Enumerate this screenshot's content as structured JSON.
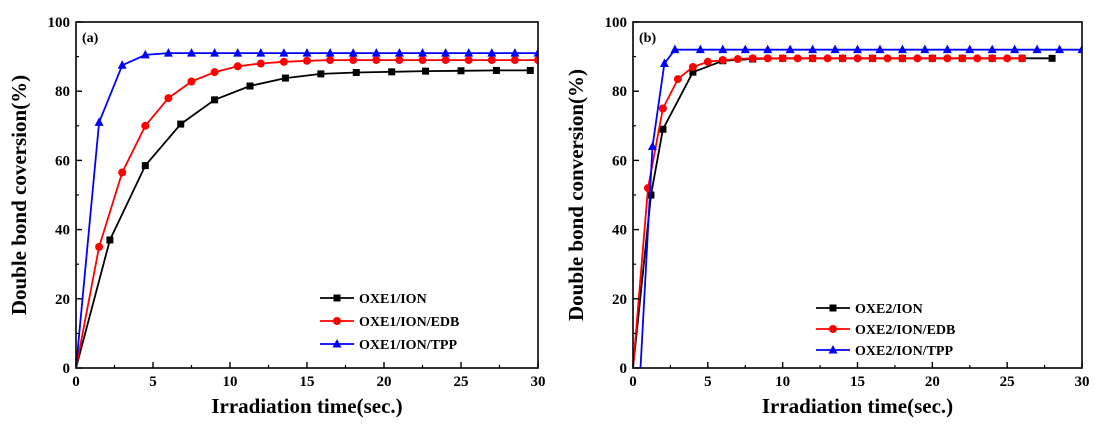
{
  "chart_data": [
    {
      "type": "line",
      "panel_label": "(a)",
      "xlabel": "Irradiation time(sec.)",
      "ylabel": "Double bond coversion(%)",
      "xlim": [
        0,
        30
      ],
      "ylim": [
        0,
        100
      ],
      "xticks": [
        0,
        5,
        10,
        15,
        20,
        25,
        30
      ],
      "yticks": [
        0,
        20,
        40,
        60,
        80,
        100
      ],
      "grid": false,
      "legend_position": "bottom-right",
      "series": [
        {
          "name": "OXE1/ION",
          "color": "#000000",
          "marker": "square",
          "points": [
            [
              0,
              0
            ],
            [
              2.2,
              37
            ],
            [
              4.5,
              58.5
            ],
            [
              6.8,
              70.5
            ],
            [
              9,
              77.5
            ],
            [
              11.3,
              81.5
            ],
            [
              13.6,
              83.8
            ],
            [
              15.9,
              85
            ],
            [
              18.2,
              85.4
            ],
            [
              20.5,
              85.6
            ],
            [
              22.7,
              85.8
            ],
            [
              25,
              85.9
            ],
            [
              27.3,
              86
            ],
            [
              29.5,
              86
            ]
          ]
        },
        {
          "name": "OXE1/ION/EDB",
          "color": "#ff0000",
          "marker": "circle",
          "points": [
            [
              0,
              0
            ],
            [
              1.5,
              35
            ],
            [
              3,
              56.5
            ],
            [
              4.5,
              70
            ],
            [
              6,
              78
            ],
            [
              7.5,
              82.8
            ],
            [
              9,
              85.5
            ],
            [
              10.5,
              87.2
            ],
            [
              12,
              88
            ],
            [
              13.5,
              88.5
            ],
            [
              15,
              88.8
            ],
            [
              16.5,
              89
            ],
            [
              18,
              89
            ],
            [
              19.5,
              89
            ],
            [
              21,
              89
            ],
            [
              22.5,
              89
            ],
            [
              24,
              89
            ],
            [
              25.5,
              89
            ],
            [
              27,
              89
            ],
            [
              28.5,
              89
            ],
            [
              30,
              89
            ]
          ]
        },
        {
          "name": "OXE1/ION/TPP",
          "color": "#0000ff",
          "marker": "triangle",
          "points": [
            [
              0,
              0
            ],
            [
              1.5,
              71
            ],
            [
              3,
              87.5
            ],
            [
              4.5,
              90.5
            ],
            [
              6,
              91
            ],
            [
              7.5,
              91
            ],
            [
              9,
              91
            ],
            [
              10.5,
              91
            ],
            [
              12,
              91
            ],
            [
              13.5,
              91
            ],
            [
              15,
              91
            ],
            [
              16.5,
              91
            ],
            [
              18,
              91
            ],
            [
              19.5,
              91
            ],
            [
              21,
              91
            ],
            [
              22.5,
              91
            ],
            [
              24,
              91
            ],
            [
              25.5,
              91
            ],
            [
              27,
              91
            ],
            [
              28.5,
              91
            ],
            [
              30,
              91
            ]
          ]
        }
      ]
    },
    {
      "type": "line",
      "panel_label": "(b)",
      "xlabel": "Irradiation time(sec.)",
      "ylabel": "Double bond conversion(%)",
      "xlim": [
        0,
        30
      ],
      "ylim": [
        0,
        100
      ],
      "xticks": [
        0,
        5,
        10,
        15,
        20,
        25,
        30
      ],
      "yticks": [
        0,
        20,
        40,
        60,
        80,
        100
      ],
      "grid": false,
      "legend_position": "bottom-right",
      "series": [
        {
          "name": "OXE2/ION",
          "color": "#000000",
          "marker": "square",
          "points": [
            [
              0,
              0
            ],
            [
              1.2,
              50
            ],
            [
              2,
              69
            ],
            [
              4,
              85.5
            ],
            [
              6,
              88.8
            ],
            [
              8,
              89.3
            ],
            [
              10,
              89.5
            ],
            [
              12,
              89.5
            ],
            [
              14,
              89.5
            ],
            [
              16,
              89.5
            ],
            [
              18,
              89.5
            ],
            [
              20,
              89.5
            ],
            [
              22,
              89.5
            ],
            [
              24,
              89.5
            ],
            [
              26,
              89.5
            ],
            [
              28,
              89.5
            ]
          ]
        },
        {
          "name": "OXE2/ION/EDB",
          "color": "#ff0000",
          "marker": "circle",
          "points": [
            [
              0,
              0
            ],
            [
              1,
              52
            ],
            [
              2,
              75
            ],
            [
              3,
              83.5
            ],
            [
              4,
              87
            ],
            [
              5,
              88.5
            ],
            [
              6,
              89
            ],
            [
              7,
              89.3
            ],
            [
              8,
              89.5
            ],
            [
              9,
              89.5
            ],
            [
              10,
              89.5
            ],
            [
              11,
              89.5
            ],
            [
              12,
              89.5
            ],
            [
              13,
              89.5
            ],
            [
              14,
              89.5
            ],
            [
              15,
              89.5
            ],
            [
              16,
              89.5
            ],
            [
              17,
              89.5
            ],
            [
              18,
              89.5
            ],
            [
              19,
              89.5
            ],
            [
              20,
              89.5
            ],
            [
              21,
              89.5
            ],
            [
              22,
              89.5
            ],
            [
              23,
              89.5
            ],
            [
              24,
              89.5
            ],
            [
              25,
              89.5
            ],
            [
              26,
              89.5
            ]
          ]
        },
        {
          "name": "OXE2/ION/TPP",
          "color": "#0000ff",
          "marker": "triangle",
          "points": [
            [
              0.5,
              0
            ],
            [
              1.3,
              64
            ],
            [
              2.1,
              88
            ],
            [
              2.8,
              92
            ],
            [
              4.5,
              92
            ],
            [
              6,
              92
            ],
            [
              7.5,
              92
            ],
            [
              9,
              92
            ],
            [
              10.5,
              92
            ],
            [
              12,
              92
            ],
            [
              13.5,
              92
            ],
            [
              15,
              92
            ],
            [
              16.5,
              92
            ],
            [
              18,
              92
            ],
            [
              19.5,
              92
            ],
            [
              21,
              92
            ],
            [
              22.5,
              92
            ],
            [
              24,
              92
            ],
            [
              25.5,
              92
            ],
            [
              27,
              92
            ],
            [
              28.5,
              92
            ],
            [
              30,
              92
            ]
          ]
        }
      ]
    }
  ]
}
